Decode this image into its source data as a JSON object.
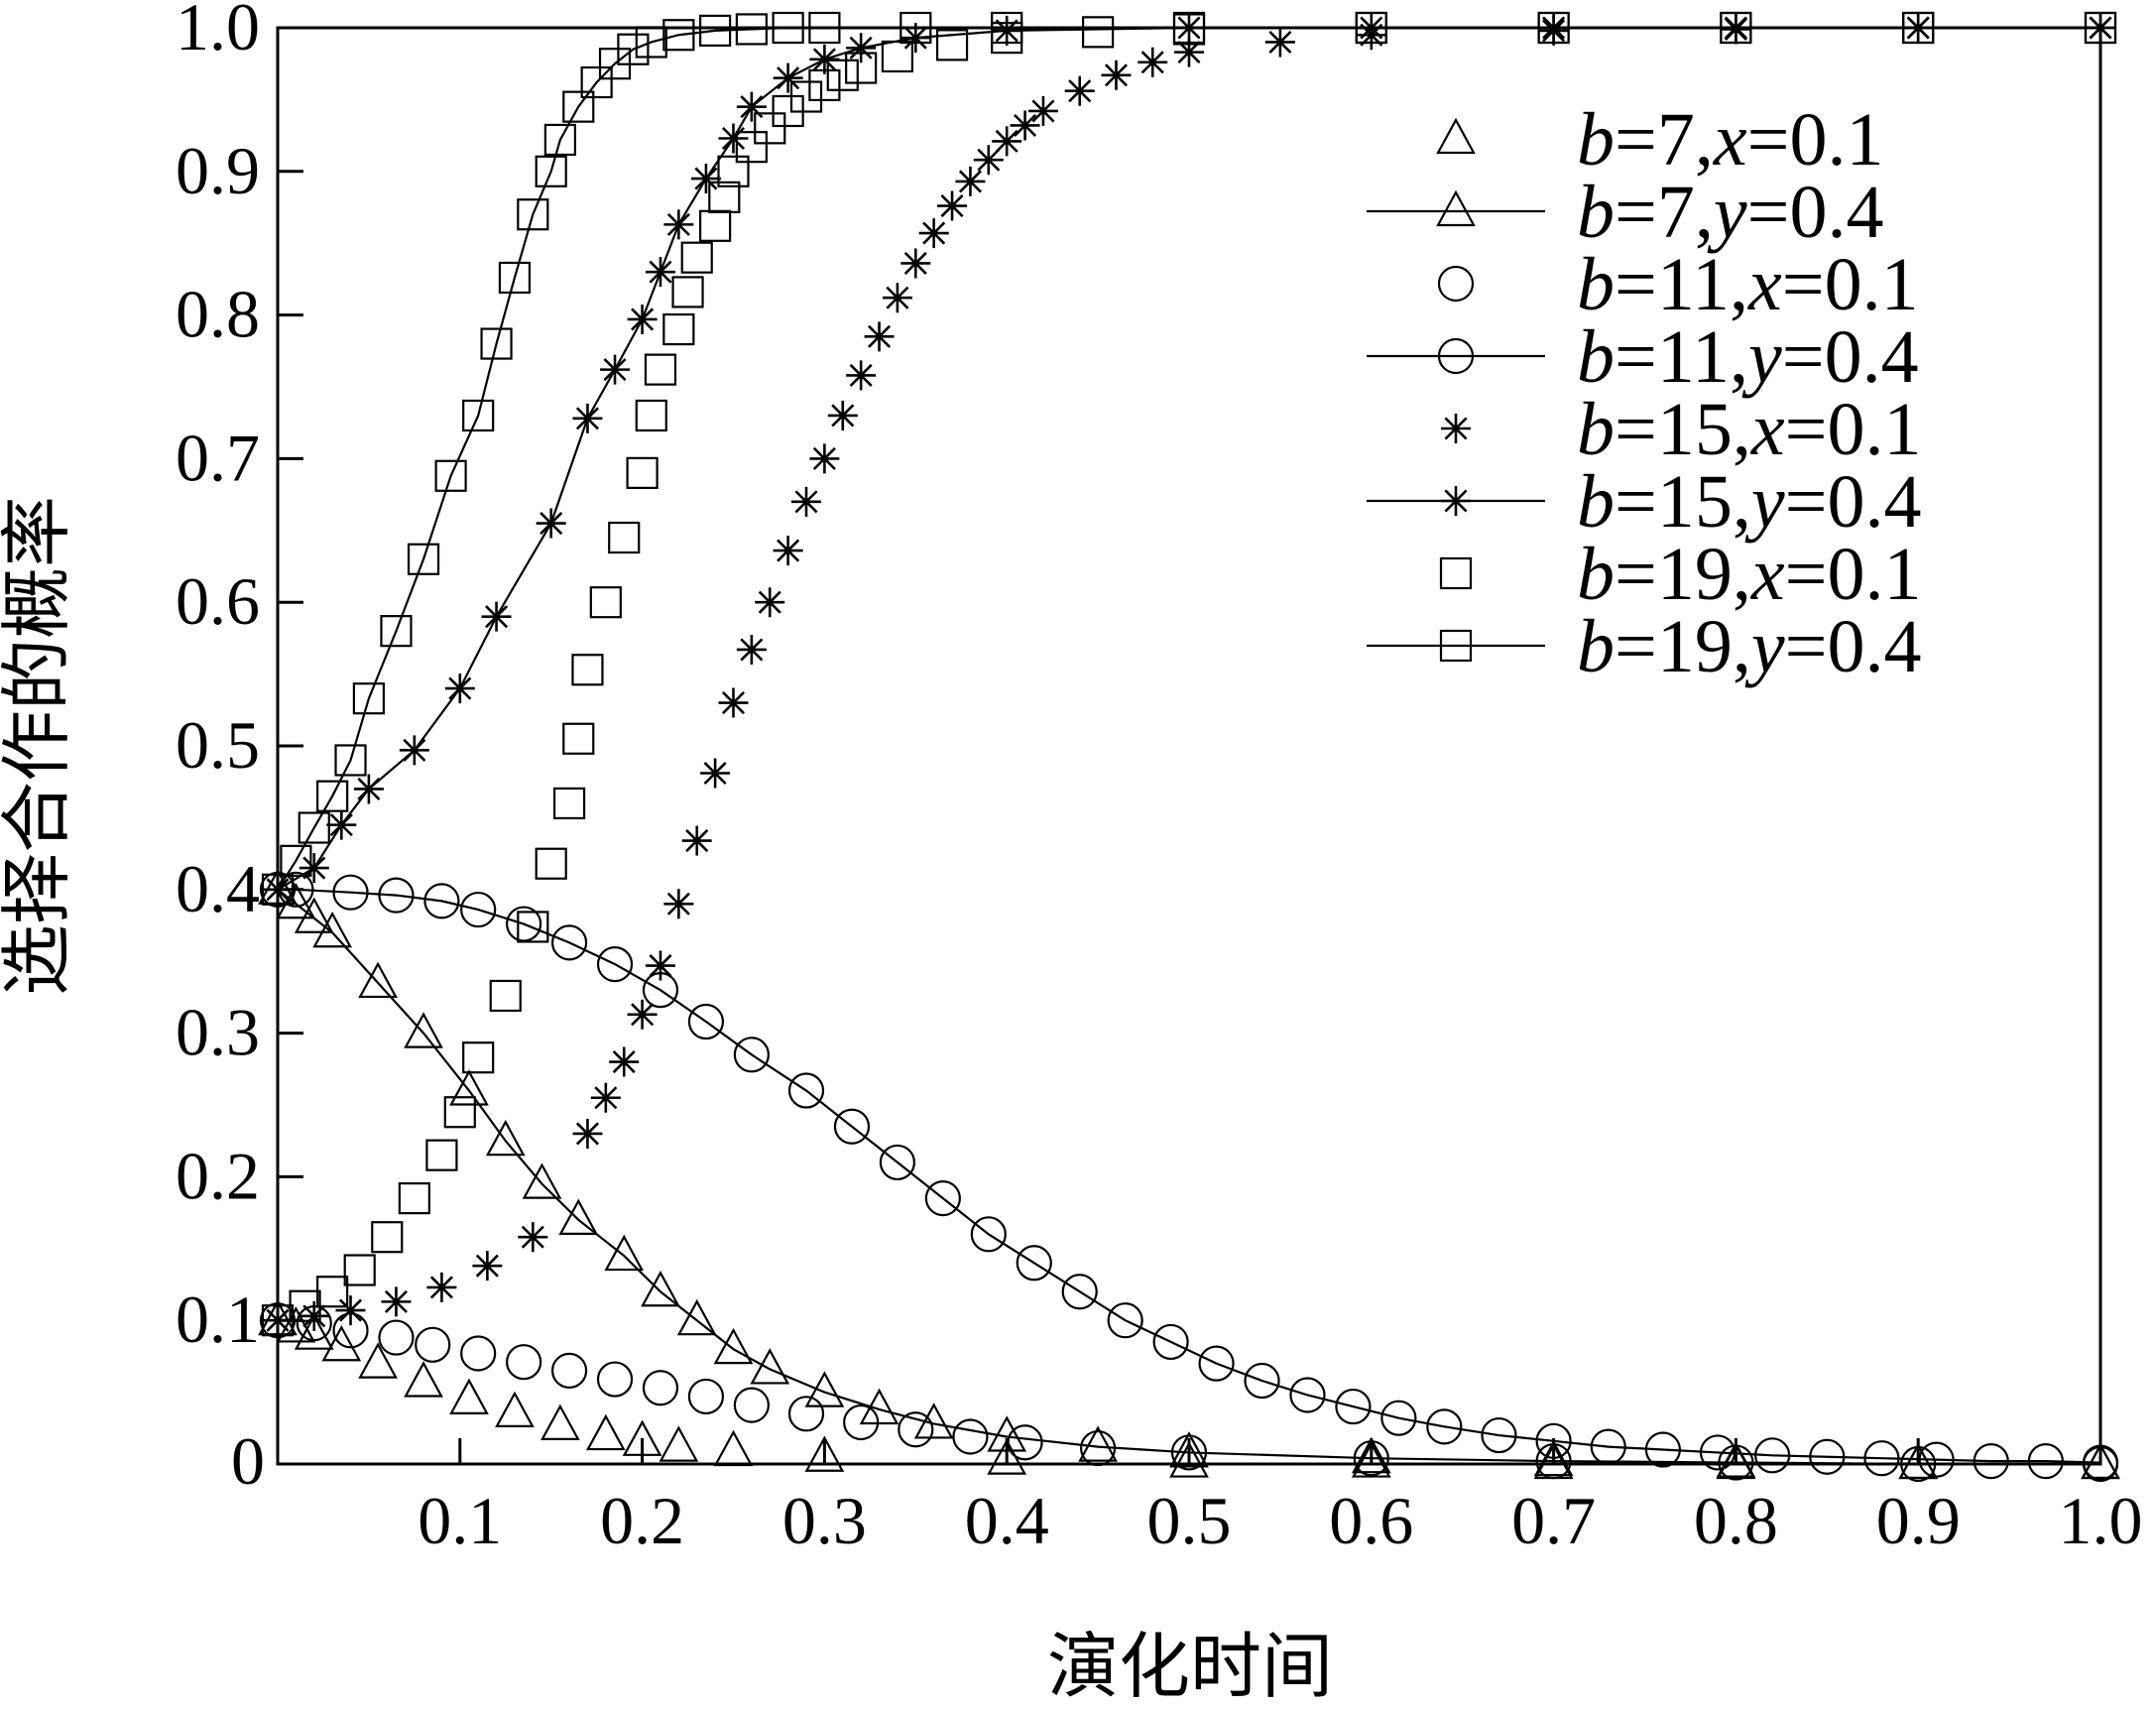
{
  "chart_data": {
    "type": "scatter",
    "title": "",
    "xlabel": "演化时间",
    "ylabel": "选择合作的概率",
    "xlim": [
      0,
      1.0
    ],
    "ylim": [
      0,
      1.0
    ],
    "x_ticks": [
      "0",
      "0.1",
      "0.2",
      "0.3",
      "0.4",
      "0.5",
      "0.6",
      "0.7",
      "0.8",
      "0.9",
      "1.0"
    ],
    "y_ticks": [
      "0.1",
      "0.2",
      "0.3",
      "0.4",
      "0.5",
      "0.6",
      "0.7",
      "0.8",
      "0.9",
      "1.0"
    ],
    "grid": false,
    "legend_position": "top-right",
    "series": [
      {
        "name": "b=7, x=0.1",
        "marker": "triangle",
        "line": false,
        "x": [
          0,
          0.01,
          0.02,
          0.035,
          0.055,
          0.08,
          0.105,
          0.13,
          0.155,
          0.18,
          0.2,
          0.22,
          0.25,
          0.3,
          0.4,
          0.5,
          0.6,
          0.7,
          0.8,
          0.9,
          1.0
        ],
        "y": [
          0.1,
          0.095,
          0.09,
          0.082,
          0.07,
          0.057,
          0.045,
          0.036,
          0.027,
          0.02,
          0.016,
          0.012,
          0.009,
          0.005,
          0.003,
          0.001,
          0.001,
          0.0,
          0.0,
          0.0,
          0.0
        ]
      },
      {
        "name": "b=7, y=0.4",
        "marker": "triangle",
        "line": true,
        "x": [
          0,
          0.01,
          0.02,
          0.03,
          0.055,
          0.08,
          0.105,
          0.125,
          0.145,
          0.165,
          0.19,
          0.21,
          0.23,
          0.25,
          0.27,
          0.3,
          0.33,
          0.36,
          0.4,
          0.45,
          0.5,
          0.6,
          0.7,
          0.8,
          0.9,
          1.0
        ],
        "y": [
          0.4,
          0.39,
          0.38,
          0.37,
          0.335,
          0.3,
          0.26,
          0.225,
          0.195,
          0.17,
          0.145,
          0.12,
          0.1,
          0.08,
          0.066,
          0.05,
          0.038,
          0.028,
          0.019,
          0.012,
          0.008,
          0.004,
          0.002,
          0.001,
          0.0,
          0.0
        ]
      },
      {
        "name": "b=11, x=0.1",
        "marker": "circle",
        "line": false,
        "x": [
          0,
          0.02,
          0.04,
          0.065,
          0.085,
          0.11,
          0.135,
          0.16,
          0.185,
          0.21,
          0.235,
          0.26,
          0.29,
          0.32,
          0.35,
          0.38,
          0.41,
          0.45,
          0.5,
          0.6,
          0.7,
          0.8,
          0.9,
          1.0
        ],
        "y": [
          0.1,
          0.098,
          0.093,
          0.088,
          0.083,
          0.077,
          0.071,
          0.065,
          0.059,
          0.053,
          0.047,
          0.041,
          0.035,
          0.029,
          0.024,
          0.019,
          0.015,
          0.011,
          0.008,
          0.004,
          0.002,
          0.001,
          0.0,
          0.0
        ]
      },
      {
        "name": "b=11, y=0.4",
        "marker": "circle",
        "line": true,
        "x": [
          0,
          0.01,
          0.04,
          0.065,
          0.09,
          0.11,
          0.135,
          0.16,
          0.185,
          0.21,
          0.235,
          0.26,
          0.29,
          0.315,
          0.34,
          0.365,
          0.39,
          0.415,
          0.44,
          0.465,
          0.49,
          0.515,
          0.54,
          0.565,
          0.59,
          0.615,
          0.64,
          0.67,
          0.7,
          0.73,
          0.76,
          0.79,
          0.82,
          0.85,
          0.88,
          0.91,
          0.94,
          0.97,
          1.0
        ],
        "y": [
          0.4,
          0.4,
          0.398,
          0.396,
          0.392,
          0.386,
          0.376,
          0.363,
          0.348,
          0.33,
          0.308,
          0.285,
          0.26,
          0.235,
          0.21,
          0.185,
          0.16,
          0.14,
          0.12,
          0.1,
          0.085,
          0.07,
          0.058,
          0.048,
          0.04,
          0.032,
          0.026,
          0.02,
          0.016,
          0.012,
          0.01,
          0.008,
          0.006,
          0.005,
          0.004,
          0.003,
          0.002,
          0.002,
          0.001
        ]
      },
      {
        "name": "b=15, x=0.1",
        "marker": "star",
        "line": false,
        "x": [
          0,
          0.02,
          0.04,
          0.065,
          0.09,
          0.115,
          0.14,
          0.17,
          0.18,
          0.19,
          0.2,
          0.21,
          0.22,
          0.23,
          0.24,
          0.25,
          0.26,
          0.27,
          0.28,
          0.29,
          0.3,
          0.31,
          0.32,
          0.33,
          0.34,
          0.35,
          0.36,
          0.37,
          0.38,
          0.39,
          0.4,
          0.41,
          0.42,
          0.44,
          0.46,
          0.48,
          0.5,
          0.55,
          0.6,
          0.7,
          0.8,
          0.9,
          1.0
        ],
        "y": [
          0.1,
          0.103,
          0.107,
          0.113,
          0.123,
          0.138,
          0.158,
          0.23,
          0.255,
          0.28,
          0.313,
          0.347,
          0.39,
          0.434,
          0.481,
          0.53,
          0.567,
          0.6,
          0.636,
          0.67,
          0.7,
          0.73,
          0.758,
          0.785,
          0.812,
          0.836,
          0.857,
          0.876,
          0.893,
          0.908,
          0.921,
          0.932,
          0.942,
          0.956,
          0.967,
          0.976,
          0.983,
          0.99,
          0.995,
          0.998,
          0.999,
          1.0,
          1.0
        ]
      },
      {
        "name": "b=15, y=0.4",
        "marker": "star",
        "line": true,
        "x": [
          0,
          0.02,
          0.035,
          0.05,
          0.075,
          0.1,
          0.12,
          0.15,
          0.17,
          0.185,
          0.2,
          0.21,
          0.22,
          0.235,
          0.25,
          0.26,
          0.28,
          0.3,
          0.32,
          0.35,
          0.4,
          0.5,
          0.6,
          0.7,
          0.8,
          0.9,
          1.0
        ],
        "y": [
          0.4,
          0.415,
          0.445,
          0.47,
          0.497,
          0.54,
          0.59,
          0.655,
          0.728,
          0.762,
          0.797,
          0.83,
          0.863,
          0.895,
          0.923,
          0.945,
          0.965,
          0.978,
          0.986,
          0.993,
          0.998,
          1.0,
          1.0,
          1.0,
          1.0,
          1.0,
          1.0
        ]
      },
      {
        "name": "b=19, x=0.1",
        "marker": "square",
        "line": false,
        "x": [
          0,
          0.015,
          0.03,
          0.045,
          0.06,
          0.075,
          0.09,
          0.1,
          0.11,
          0.125,
          0.14,
          0.15,
          0.16,
          0.165,
          0.17,
          0.18,
          0.19,
          0.2,
          0.205,
          0.21,
          0.22,
          0.225,
          0.23,
          0.24,
          0.245,
          0.25,
          0.26,
          0.27,
          0.28,
          0.29,
          0.3,
          0.31,
          0.32,
          0.34,
          0.37,
          0.4,
          0.45,
          0.5,
          0.6,
          0.7,
          0.8,
          0.9,
          1.0
        ],
        "y": [
          0.1,
          0.11,
          0.12,
          0.135,
          0.158,
          0.185,
          0.215,
          0.245,
          0.283,
          0.326,
          0.374,
          0.418,
          0.46,
          0.505,
          0.553,
          0.6,
          0.645,
          0.69,
          0.73,
          0.762,
          0.79,
          0.816,
          0.84,
          0.862,
          0.882,
          0.9,
          0.917,
          0.93,
          0.942,
          0.952,
          0.96,
          0.967,
          0.972,
          0.98,
          0.988,
          0.993,
          0.997,
          0.999,
          1.0,
          1.0,
          1.0,
          1.0,
          1.0
        ]
      },
      {
        "name": "b=19, y=0.4",
        "marker": "square",
        "line": true,
        "x": [
          0,
          0.01,
          0.02,
          0.03,
          0.04,
          0.05,
          0.065,
          0.08,
          0.095,
          0.11,
          0.12,
          0.13,
          0.14,
          0.15,
          0.155,
          0.165,
          0.175,
          0.185,
          0.195,
          0.205,
          0.22,
          0.24,
          0.26,
          0.28,
          0.3,
          0.35,
          0.4,
          0.5,
          0.6,
          0.7,
          0.8,
          0.9,
          1.0
        ],
        "y": [
          0.4,
          0.42,
          0.443,
          0.465,
          0.49,
          0.533,
          0.58,
          0.63,
          0.688,
          0.73,
          0.78,
          0.826,
          0.87,
          0.9,
          0.922,
          0.945,
          0.962,
          0.975,
          0.985,
          0.99,
          0.995,
          0.998,
          0.999,
          1.0,
          1.0,
          1.0,
          1.0,
          1.0,
          1.0,
          1.0,
          1.0,
          1.0,
          1.0
        ]
      }
    ],
    "legend_entries": [
      {
        "b": "b",
        "eq1": "=7,",
        "var": "x",
        "eq2": "=0.1"
      },
      {
        "b": "b",
        "eq1": "=7,",
        "var": "y",
        "eq2": "=0.4"
      },
      {
        "b": "b",
        "eq1": "=11,",
        "var": "x",
        "eq2": "=0.1"
      },
      {
        "b": "b",
        "eq1": "=11,",
        "var": "y",
        "eq2": "=0.4"
      },
      {
        "b": "b",
        "eq1": "=15,",
        "var": "x",
        "eq2": "=0.1"
      },
      {
        "b": "b",
        "eq1": "=15,",
        "var": "y",
        "eq2": "=0.4"
      },
      {
        "b": "b",
        "eq1": "=19,",
        "var": "x",
        "eq2": "=0.1"
      },
      {
        "b": "b",
        "eq1": "=19,",
        "var": "y",
        "eq2": "=0.4"
      }
    ]
  }
}
